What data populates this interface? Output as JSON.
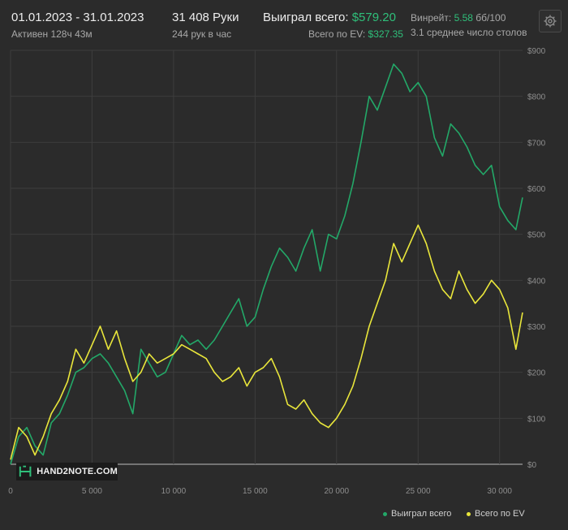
{
  "header": {
    "date_range": "01.01.2023 - 31.01.2023",
    "active": "Активен 128ч 43м",
    "hands": "31 408 Руки",
    "hands_per_hour": "244 рук в час",
    "won_label": "Выиграл всего:",
    "won_value": "$579.20",
    "ev_label": "Всего по EV:",
    "ev_value": "$327.35",
    "winrate_label": "Винрейт:",
    "winrate_value": "5.58",
    "winrate_unit": "бб/100",
    "avg_tables": "3.1 среднее число столов"
  },
  "logo": {
    "text": "HAND2NOTE.COM"
  },
  "legend": {
    "won": "Выиграл всего",
    "ev": "Всего по EV"
  },
  "colors": {
    "won": "#23a868",
    "ev": "#e9e63b",
    "background": "#2b2b2b",
    "grid": "#3d3d3d"
  },
  "icons": {
    "settings": "gear-icon",
    "logo": "hand2note-logo-icon"
  },
  "chart_data": {
    "type": "line",
    "xlabel": "",
    "ylabel": "",
    "xlim": [
      0,
      31408
    ],
    "ylim": [
      0,
      900
    ],
    "x_ticks": [
      0,
      5000,
      10000,
      15000,
      20000,
      25000,
      30000
    ],
    "x_tick_labels": [
      "0",
      "5 000",
      "10 000",
      "15 000",
      "20 000",
      "25 000",
      "30 000"
    ],
    "y_ticks": [
      0,
      100,
      200,
      300,
      400,
      500,
      600,
      700,
      800,
      900
    ],
    "y_tick_labels": [
      "$0",
      "$100",
      "$200",
      "$300",
      "$400",
      "$500",
      "$600",
      "$700",
      "$800",
      "$900"
    ],
    "grid": true,
    "legend_position": "bottom-right",
    "series": [
      {
        "name": "Выиграл всего",
        "color": "#23a868",
        "points": [
          [
            0,
            0
          ],
          [
            500,
            60
          ],
          [
            1000,
            80
          ],
          [
            1500,
            40
          ],
          [
            2000,
            20
          ],
          [
            2500,
            90
          ],
          [
            3000,
            110
          ],
          [
            3500,
            150
          ],
          [
            4000,
            200
          ],
          [
            4500,
            210
          ],
          [
            5000,
            230
          ],
          [
            5500,
            240
          ],
          [
            6000,
            220
          ],
          [
            6500,
            190
          ],
          [
            7000,
            160
          ],
          [
            7500,
            110
          ],
          [
            8000,
            250
          ],
          [
            8500,
            220
          ],
          [
            9000,
            190
          ],
          [
            9500,
            200
          ],
          [
            10000,
            240
          ],
          [
            10500,
            280
          ],
          [
            11000,
            260
          ],
          [
            11500,
            270
          ],
          [
            12000,
            250
          ],
          [
            12500,
            270
          ],
          [
            13000,
            300
          ],
          [
            13500,
            330
          ],
          [
            14000,
            360
          ],
          [
            14500,
            300
          ],
          [
            15000,
            320
          ],
          [
            15500,
            380
          ],
          [
            16000,
            430
          ],
          [
            16500,
            470
          ],
          [
            17000,
            450
          ],
          [
            17500,
            420
          ],
          [
            18000,
            470
          ],
          [
            18500,
            510
          ],
          [
            19000,
            420
          ],
          [
            19500,
            500
          ],
          [
            20000,
            490
          ],
          [
            20500,
            540
          ],
          [
            21000,
            610
          ],
          [
            21500,
            700
          ],
          [
            22000,
            800
          ],
          [
            22500,
            770
          ],
          [
            23000,
            820
          ],
          [
            23500,
            870
          ],
          [
            24000,
            850
          ],
          [
            24500,
            810
          ],
          [
            25000,
            830
          ],
          [
            25500,
            800
          ],
          [
            26000,
            710
          ],
          [
            26500,
            670
          ],
          [
            27000,
            740
          ],
          [
            27500,
            720
          ],
          [
            28000,
            690
          ],
          [
            28500,
            650
          ],
          [
            29000,
            630
          ],
          [
            29500,
            650
          ],
          [
            30000,
            560
          ],
          [
            30500,
            530
          ],
          [
            31000,
            510
          ],
          [
            31408,
            580
          ]
        ]
      },
      {
        "name": "Всего по EV",
        "color": "#e9e63b",
        "points": [
          [
            0,
            10
          ],
          [
            500,
            80
          ],
          [
            1000,
            60
          ],
          [
            1500,
            20
          ],
          [
            2000,
            60
          ],
          [
            2500,
            110
          ],
          [
            3000,
            140
          ],
          [
            3500,
            180
          ],
          [
            4000,
            250
          ],
          [
            4500,
            220
          ],
          [
            5000,
            260
          ],
          [
            5500,
            300
          ],
          [
            6000,
            250
          ],
          [
            6500,
            290
          ],
          [
            7000,
            230
          ],
          [
            7500,
            180
          ],
          [
            8000,
            200
          ],
          [
            8500,
            240
          ],
          [
            9000,
            220
          ],
          [
            9500,
            230
          ],
          [
            10000,
            240
          ],
          [
            10500,
            260
          ],
          [
            11000,
            250
          ],
          [
            11500,
            240
          ],
          [
            12000,
            230
          ],
          [
            12500,
            200
          ],
          [
            13000,
            180
          ],
          [
            13500,
            190
          ],
          [
            14000,
            210
          ],
          [
            14500,
            170
          ],
          [
            15000,
            200
          ],
          [
            15500,
            210
          ],
          [
            16000,
            230
          ],
          [
            16500,
            190
          ],
          [
            17000,
            130
          ],
          [
            17500,
            120
          ],
          [
            18000,
            140
          ],
          [
            18500,
            110
          ],
          [
            19000,
            90
          ],
          [
            19500,
            80
          ],
          [
            20000,
            100
          ],
          [
            20500,
            130
          ],
          [
            21000,
            170
          ],
          [
            21500,
            230
          ],
          [
            22000,
            300
          ],
          [
            22500,
            350
          ],
          [
            23000,
            400
          ],
          [
            23500,
            480
          ],
          [
            24000,
            440
          ],
          [
            24500,
            480
          ],
          [
            25000,
            520
          ],
          [
            25500,
            480
          ],
          [
            26000,
            420
          ],
          [
            26500,
            380
          ],
          [
            27000,
            360
          ],
          [
            27500,
            420
          ],
          [
            28000,
            380
          ],
          [
            28500,
            350
          ],
          [
            29000,
            370
          ],
          [
            29500,
            400
          ],
          [
            30000,
            380
          ],
          [
            30500,
            340
          ],
          [
            31000,
            250
          ],
          [
            31408,
            330
          ]
        ]
      }
    ]
  }
}
